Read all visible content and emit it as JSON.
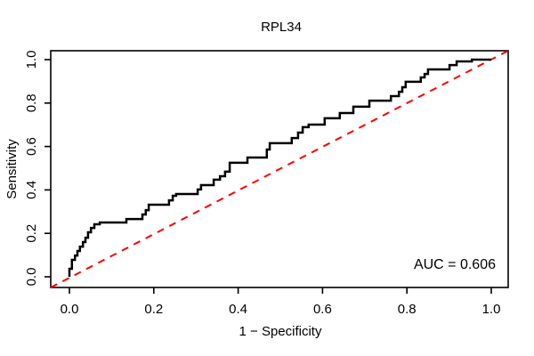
{
  "chart_data": {
    "type": "line",
    "subtype": "roc-step-curve",
    "title": "RPL34",
    "xlabel": "1 − Specificity",
    "ylabel": "Sensitivity",
    "xlim": [
      0,
      1
    ],
    "ylim": [
      0,
      1
    ],
    "grid": false,
    "x_ticks": [
      "0.0",
      "0.2",
      "0.4",
      "0.6",
      "0.8",
      "1.0"
    ],
    "y_ticks": [
      "0.0",
      "0.2",
      "0.4",
      "0.6",
      "0.8",
      "1.0"
    ],
    "auc": 0.606,
    "auc_text": "AUC = 0.606",
    "colors": {
      "curve": "#000000",
      "diagonal": "#ff0000",
      "axis": "#000000",
      "background": "#ffffff"
    },
    "series": [
      {
        "name": "ROC curve",
        "style": "solid-step",
        "color": "#000000",
        "points": [
          [
            0,
            0
          ],
          [
            0,
            0.037
          ],
          [
            0.006,
            0.037
          ],
          [
            0.006,
            0.078
          ],
          [
            0.013,
            0.078
          ],
          [
            0.013,
            0.098
          ],
          [
            0.019,
            0.098
          ],
          [
            0.019,
            0.119
          ],
          [
            0.025,
            0.119
          ],
          [
            0.025,
            0.139
          ],
          [
            0.032,
            0.139
          ],
          [
            0.032,
            0.16
          ],
          [
            0.038,
            0.16
          ],
          [
            0.038,
            0.18
          ],
          [
            0.044,
            0.18
          ],
          [
            0.044,
            0.205
          ],
          [
            0.051,
            0.205
          ],
          [
            0.051,
            0.225
          ],
          [
            0.059,
            0.225
          ],
          [
            0.059,
            0.242
          ],
          [
            0.072,
            0.242
          ],
          [
            0.072,
            0.25
          ],
          [
            0.135,
            0.25
          ],
          [
            0.135,
            0.266
          ],
          [
            0.173,
            0.266
          ],
          [
            0.173,
            0.287
          ],
          [
            0.181,
            0.287
          ],
          [
            0.181,
            0.307
          ],
          [
            0.188,
            0.307
          ],
          [
            0.188,
            0.332
          ],
          [
            0.236,
            0.332
          ],
          [
            0.236,
            0.352
          ],
          [
            0.245,
            0.352
          ],
          [
            0.245,
            0.373
          ],
          [
            0.253,
            0.373
          ],
          [
            0.253,
            0.381
          ],
          [
            0.304,
            0.381
          ],
          [
            0.304,
            0.402
          ],
          [
            0.312,
            0.402
          ],
          [
            0.312,
            0.422
          ],
          [
            0.342,
            0.422
          ],
          [
            0.342,
            0.447
          ],
          [
            0.357,
            0.447
          ],
          [
            0.357,
            0.463
          ],
          [
            0.369,
            0.463
          ],
          [
            0.369,
            0.484
          ],
          [
            0.38,
            0.484
          ],
          [
            0.38,
            0.525
          ],
          [
            0.422,
            0.525
          ],
          [
            0.422,
            0.549
          ],
          [
            0.468,
            0.549
          ],
          [
            0.468,
            0.586
          ],
          [
            0.475,
            0.586
          ],
          [
            0.475,
            0.615
          ],
          [
            0.527,
            0.615
          ],
          [
            0.527,
            0.639
          ],
          [
            0.542,
            0.639
          ],
          [
            0.542,
            0.664
          ],
          [
            0.553,
            0.664
          ],
          [
            0.553,
            0.689
          ],
          [
            0.567,
            0.689
          ],
          [
            0.567,
            0.701
          ],
          [
            0.605,
            0.701
          ],
          [
            0.605,
            0.73
          ],
          [
            0.612,
            0.73
          ],
          [
            0.641,
            0.73
          ],
          [
            0.641,
            0.754
          ],
          [
            0.648,
            0.754
          ],
          [
            0.673,
            0.754
          ],
          [
            0.673,
            0.783
          ],
          [
            0.679,
            0.783
          ],
          [
            0.711,
            0.783
          ],
          [
            0.711,
            0.811
          ],
          [
            0.715,
            0.811
          ],
          [
            0.762,
            0.811
          ],
          [
            0.762,
            0.832
          ],
          [
            0.768,
            0.832
          ],
          [
            0.781,
            0.832
          ],
          [
            0.781,
            0.852
          ],
          [
            0.789,
            0.852
          ],
          [
            0.789,
            0.873
          ],
          [
            0.797,
            0.873
          ],
          [
            0.797,
            0.898
          ],
          [
            0.812,
            0.898
          ],
          [
            0.833,
            0.898
          ],
          [
            0.833,
            0.918
          ],
          [
            0.842,
            0.918
          ],
          [
            0.842,
            0.934
          ],
          [
            0.85,
            0.934
          ],
          [
            0.85,
            0.955
          ],
          [
            0.863,
            0.955
          ],
          [
            0.901,
            0.955
          ],
          [
            0.901,
            0.975
          ],
          [
            0.918,
            0.975
          ],
          [
            0.918,
            0.992
          ],
          [
            0.954,
            0.992
          ],
          [
            0.954,
            1
          ],
          [
            1,
            1
          ]
        ]
      },
      {
        "name": "chance diagonal",
        "style": "dashed",
        "color": "#ff0000",
        "points": [
          [
            0,
            0
          ],
          [
            1,
            1
          ]
        ]
      }
    ]
  }
}
